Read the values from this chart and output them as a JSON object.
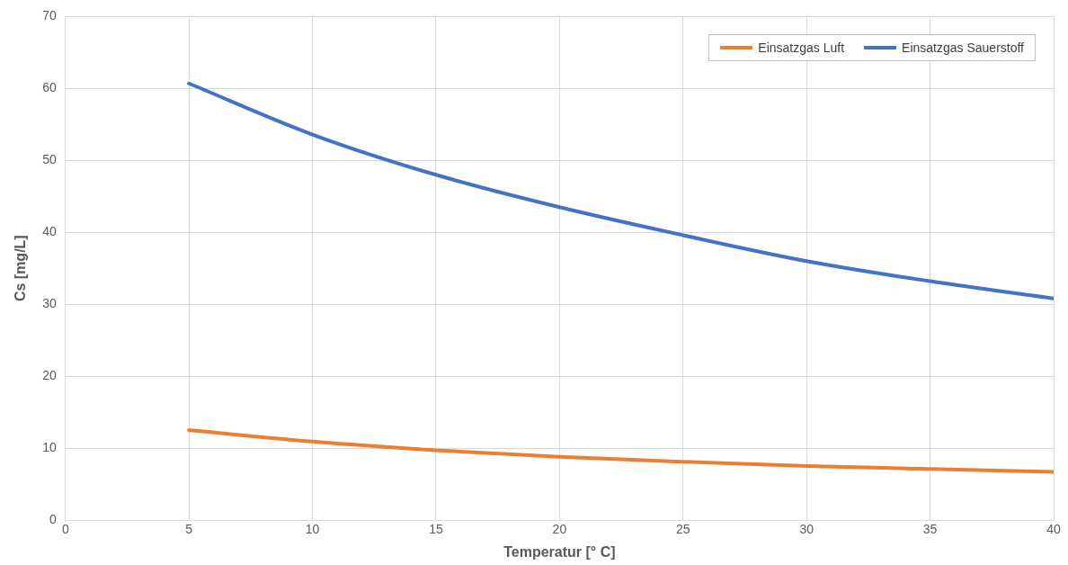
{
  "chart_data": {
    "type": "line",
    "xlabel": "Temperatur [° C]",
    "ylabel": "Cs [mg/L]",
    "x": [
      5,
      10,
      15,
      20,
      25,
      30,
      35,
      40
    ],
    "series": [
      {
        "name": "Einsatzgas Luft",
        "color": "#ed7d31",
        "values": [
          12.5,
          10.9,
          9.7,
          8.8,
          8.1,
          7.5,
          7.1,
          6.7
        ]
      },
      {
        "name": "Einsatzgas Sauerstoff",
        "color": "#4472c4",
        "values": [
          60.7,
          53.6,
          48.0,
          43.5,
          39.6,
          36.0,
          33.2,
          30.8
        ]
      }
    ],
    "xlim": [
      0,
      40
    ],
    "xticks": [
      0,
      5,
      10,
      15,
      20,
      25,
      30,
      35,
      40
    ],
    "ylim": [
      0,
      70
    ],
    "yticks": [
      0,
      10,
      20,
      30,
      40,
      50,
      60,
      70
    ],
    "grid": true,
    "legend": "top right",
    "marker": "none",
    "line_style": "solid"
  }
}
